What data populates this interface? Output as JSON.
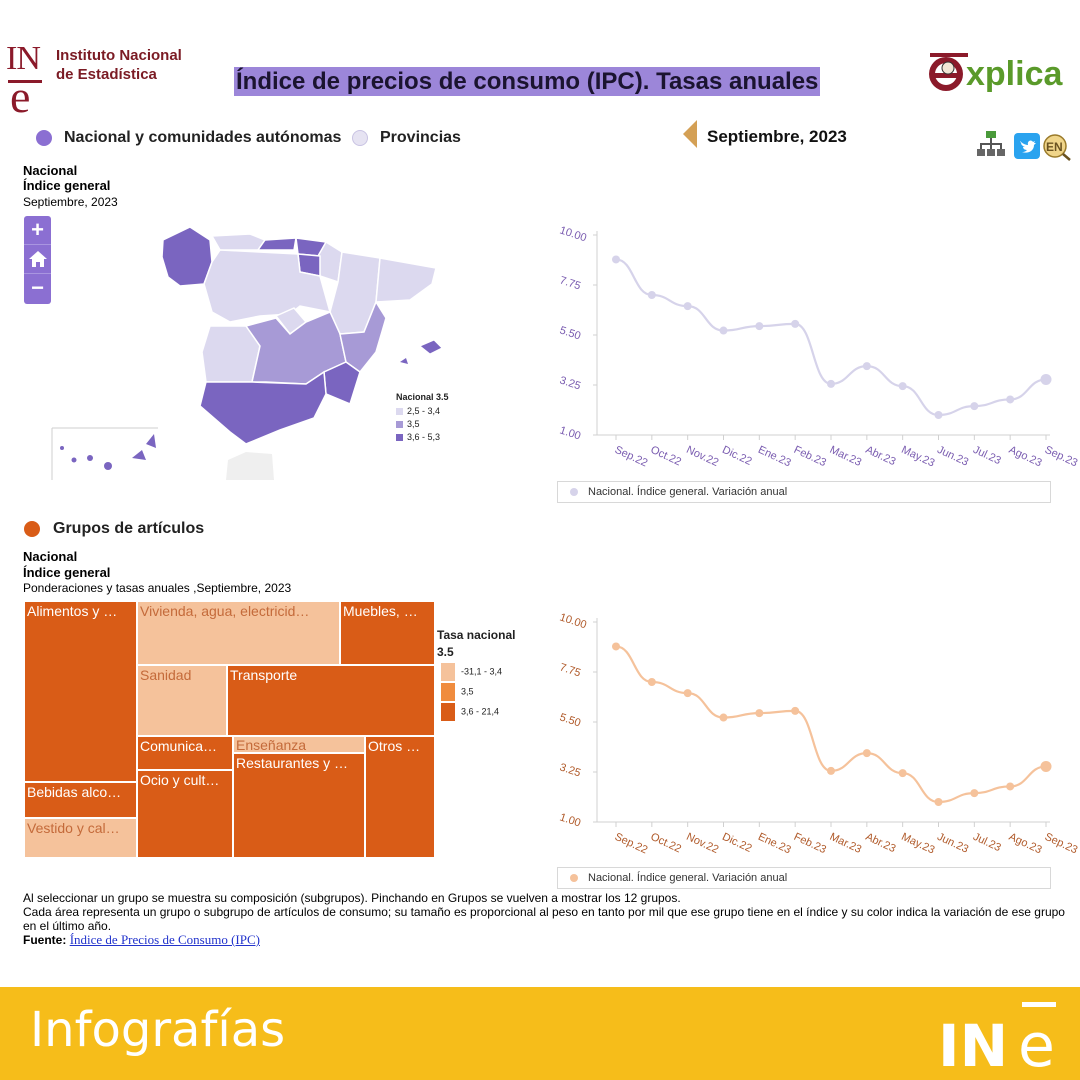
{
  "header": {
    "institution_short": "INE",
    "institution_name": "Instituto Nacional de Estadística",
    "title": "Índice de precios de consumo (IPC). Tasas anuales",
    "explica_logo": "explica"
  },
  "view_toggle": {
    "option_regions": "Nacional y comunidades autónomas",
    "option_provinces": "Provincias",
    "selected": "regions"
  },
  "period": {
    "label": "Septiembre, 2023",
    "prev_icon": "triangle-left-icon"
  },
  "toolbar_icons": [
    "sitemap-icon",
    "twitter-icon",
    "english-language-icon"
  ],
  "map_panel": {
    "title_line1": "Nacional",
    "title_line2": "Índice general",
    "subtitle": "Septiembre, 2023",
    "zoom_in": "+",
    "zoom_out": "−",
    "home_icon": "home-icon",
    "legend_title": "Nacional 3.5",
    "legend_items": [
      {
        "label": "2,5 - 3,4",
        "color": "#dcd9ef"
      },
      {
        "label": "3,5",
        "color": "#a79ad6"
      },
      {
        "label": "3,6 - 5,3",
        "color": "#7a65c0"
      }
    ]
  },
  "groups_section": {
    "label": "Grupos de artículos",
    "title_line1": "Nacional",
    "title_line2": "Índice general",
    "subtitle": "Ponderaciones y tasas anuales ,Septiembre, 2023",
    "legend_title": "Tasa nacional",
    "legend_value": "3.5",
    "legend_items": [
      {
        "label": "-31,1 - 3,4",
        "color": "#f5c29b"
      },
      {
        "label": "3,5",
        "color": "#f08c3e"
      },
      {
        "label": "3,6 - 21,4",
        "color": "#d95c17"
      }
    ],
    "treemap": [
      {
        "label": "Alimentos y …"
      },
      {
        "label": "Vivienda, agua, electricid…"
      },
      {
        "label": "Muebles, …"
      },
      {
        "label": "Sanidad"
      },
      {
        "label": "Transporte"
      },
      {
        "label": "Comunica…"
      },
      {
        "label": "Enseñanza"
      },
      {
        "label": "Otros …"
      },
      {
        "label": "Ocio y cult…"
      },
      {
        "label": "Restaurantes y …"
      },
      {
        "label": "Bebidas alco…"
      },
      {
        "label": "Vestido y cal…"
      }
    ]
  },
  "chart_data": [
    {
      "type": "line",
      "x": [
        "Sep.22",
        "Oct.22",
        "Nov.22",
        "Dic.22",
        "Ene.23",
        "Feb.23",
        "Mar.23",
        "Abr.23",
        "May.23",
        "Jun.23",
        "Jul.23",
        "Ago.23",
        "Sep.23"
      ],
      "series": [
        {
          "name": "Nacional. Índice general. Variación anual",
          "values": [
            8.9,
            7.3,
            6.8,
            5.7,
            5.9,
            6.0,
            3.3,
            4.1,
            3.2,
            1.9,
            2.3,
            2.6,
            3.5
          ],
          "color": "#d6d3ea"
        }
      ],
      "yticks": [
        "1.00",
        "3.25",
        "5.50",
        "7.75",
        "10.00"
      ],
      "ylim": [
        1.0,
        10.0
      ],
      "tick_color": "#7a5cb0"
    },
    {
      "type": "line",
      "x": [
        "Sep.22",
        "Oct.22",
        "Nov.22",
        "Dic.22",
        "Ene.23",
        "Feb.23",
        "Mar.23",
        "Abr.23",
        "May.23",
        "Jun.23",
        "Jul.23",
        "Ago.23",
        "Sep.23"
      ],
      "series": [
        {
          "name": "Nacional. Índice general. Variación anual",
          "values": [
            8.9,
            7.3,
            6.8,
            5.7,
            5.9,
            6.0,
            3.3,
            4.1,
            3.2,
            1.9,
            2.3,
            2.6,
            3.5
          ],
          "color": "#f5c29b"
        }
      ],
      "yticks": [
        "1.00",
        "3.25",
        "5.50",
        "7.75",
        "10.00"
      ],
      "ylim": [
        1.0,
        10.0
      ],
      "tick_color": "#b05a2a"
    }
  ],
  "notes": {
    "line1": "Al seleccionar un grupo se muestra su composición (subgrupos). Pinchando en Grupos se vuelven a mostrar los 12 grupos.",
    "line2": "Cada área representa un grupo o subgrupo de artículos de consumo; su tamaño es proporcional al peso en tanto por mil que ese grupo tiene en el índice y su color indica la variación de ese grupo en el último año.",
    "source_label": "Fuente:",
    "source_link": "Índice de Precios de Consumo (IPC)"
  },
  "footer": {
    "label": "Infografías",
    "logo": "INE"
  }
}
